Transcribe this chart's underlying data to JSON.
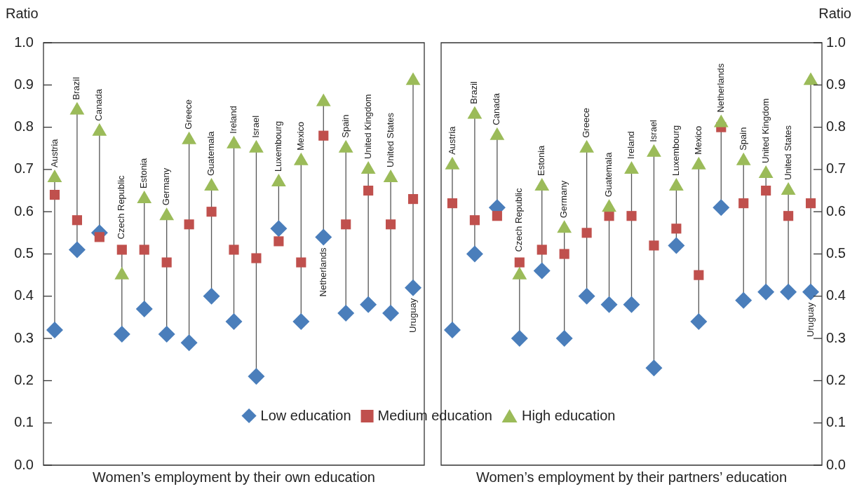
{
  "chart_data": [
    {
      "type": "scatter",
      "xlabel": "Women’s employment by their own education",
      "ylabel": "Ratio",
      "legend": "bottom",
      "categories": [
        "Austria",
        "Brazil",
        "Canada",
        "Czech Republic",
        "Estonia",
        "Germany",
        "Greece",
        "Guatemala",
        "Ireland",
        "Israel",
        "Luxembourg",
        "Mexico",
        "Netherlands",
        "Spain",
        "United Kingdom",
        "United States",
        "Uruguay"
      ],
      "ylim": [
        0,
        1
      ],
      "yticks": [
        {
          "value": 0,
          "label": "0.0"
        },
        {
          "value": 0.1,
          "label": "0.1"
        },
        {
          "value": 0.2,
          "label": "0.2"
        },
        {
          "value": 0.3,
          "label": "0.3"
        },
        {
          "value": 0.4,
          "label": "0.4"
        },
        {
          "value": 0.5,
          "label": "0.5"
        },
        {
          "value": 0.6,
          "label": "0.6"
        },
        {
          "value": 0.7,
          "label": "0.7"
        },
        {
          "value": 0.8,
          "label": "0.8"
        },
        {
          "value": 0.9,
          "label": "0.9"
        },
        {
          "value": 1,
          "label": "1.0"
        }
      ],
      "series": [
        {
          "name": "Low education",
          "color": "#4a7ebb",
          "marker": "diamond",
          "values": [
            0.32,
            0.51,
            0.55,
            0.31,
            0.37,
            0.31,
            0.29,
            0.4,
            0.34,
            0.21,
            0.56,
            0.34,
            0.54,
            0.36,
            0.38,
            0.36,
            0.42
          ]
        },
        {
          "name": "Medium education",
          "color": "#c0504d",
          "marker": "square",
          "values": [
            0.64,
            0.58,
            0.54,
            0.51,
            0.51,
            0.48,
            0.57,
            0.6,
            0.51,
            0.49,
            0.53,
            0.48,
            0.78,
            0.57,
            0.65,
            0.57,
            0.63
          ]
        },
        {
          "name": "High education",
          "color": "#9bbb59",
          "marker": "triangle",
          "values": [
            0.68,
            0.84,
            0.79,
            0.45,
            0.63,
            0.59,
            0.77,
            0.66,
            0.76,
            0.75,
            0.67,
            0.72,
            0.86,
            0.75,
            0.7,
            0.68,
            0.91
          ]
        }
      ]
    },
    {
      "type": "scatter",
      "xlabel": "Women’s employment by their partners’ education",
      "y2label": "Ratio",
      "categories": [
        "Austria",
        "Brazil",
        "Canada",
        "Czech Republic",
        "Estonia",
        "Germany",
        "Greece",
        "Guatemala",
        "Ireland",
        "Israel",
        "Luxembourg",
        "Mexico",
        "Netherlands",
        "Spain",
        "United Kingdom",
        "United States",
        "Uruguay"
      ],
      "y2lim": [
        0,
        1
      ],
      "y2ticks": [
        {
          "value": 0,
          "label": "0.0"
        },
        {
          "value": 0.1,
          "label": "0.1"
        },
        {
          "value": 0.2,
          "label": "0.2"
        },
        {
          "value": 0.3,
          "label": "0.3"
        },
        {
          "value": 0.4,
          "label": "0.4"
        },
        {
          "value": 0.5,
          "label": "0.5"
        },
        {
          "value": 0.6,
          "label": "0.6"
        },
        {
          "value": 0.7,
          "label": "0.7"
        },
        {
          "value": 0.8,
          "label": "0.8"
        },
        {
          "value": 0.9,
          "label": "0.9"
        },
        {
          "value": 1,
          "label": "1.0"
        }
      ],
      "series": [
        {
          "color": "#4a7ebb",
          "marker": "diamond",
          "axis": "y2",
          "values": [
            0.32,
            0.5,
            0.61,
            0.3,
            0.46,
            0.3,
            0.4,
            0.38,
            0.38,
            0.23,
            0.52,
            0.34,
            0.61,
            0.39,
            0.41,
            0.41,
            0.41
          ]
        },
        {
          "color": "#c0504d",
          "marker": "square",
          "axis": "y2",
          "values": [
            0.62,
            0.58,
            0.59,
            0.48,
            0.51,
            0.5,
            0.55,
            0.59,
            0.59,
            0.52,
            0.56,
            0.45,
            0.8,
            0.62,
            0.65,
            0.59,
            0.62
          ]
        },
        {
          "color": "#9bbb59",
          "marker": "triangle",
          "axis": "y2",
          "values": [
            0.71,
            0.83,
            0.78,
            0.45,
            0.66,
            0.56,
            0.75,
            0.61,
            0.7,
            0.74,
            0.66,
            0.71,
            0.81,
            0.72,
            0.69,
            0.65,
            0.91
          ]
        }
      ]
    }
  ]
}
